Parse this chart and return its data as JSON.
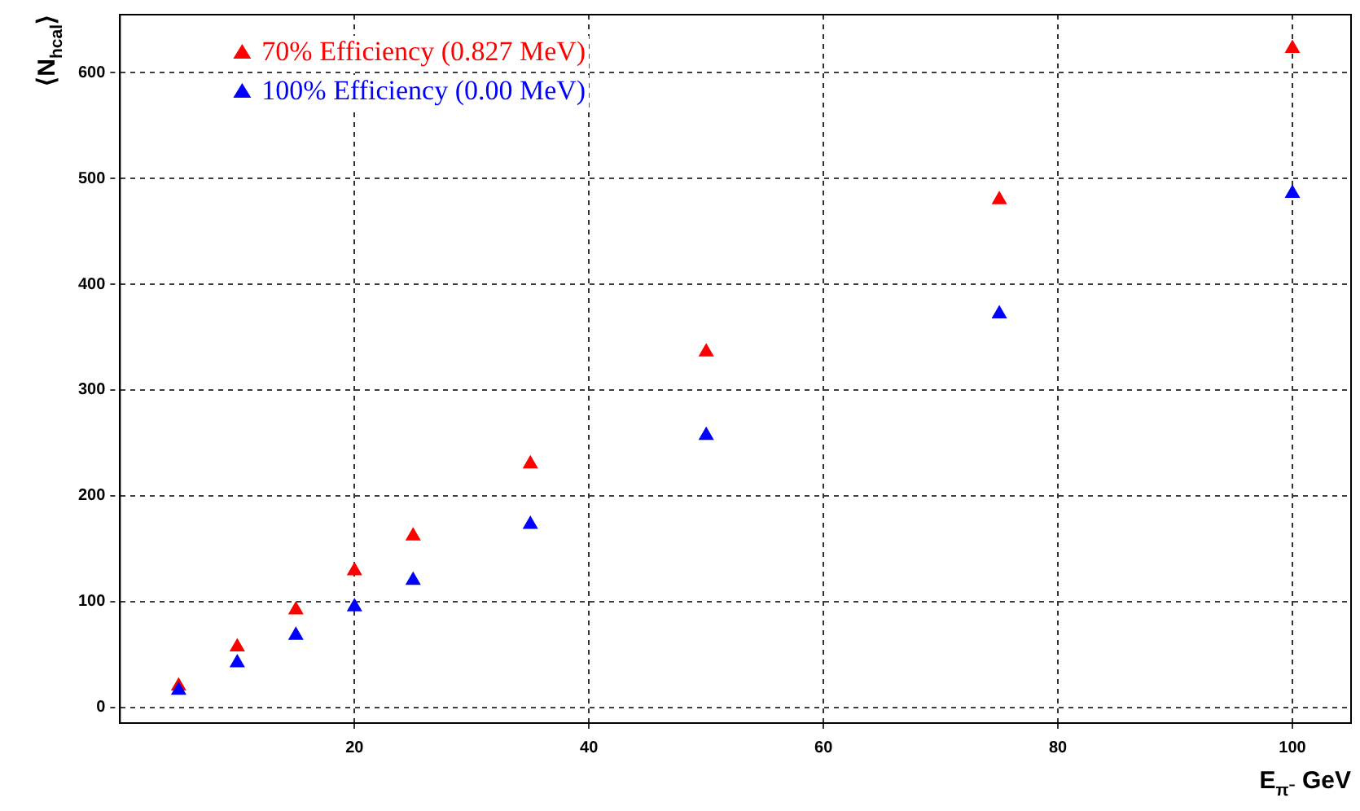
{
  "chart_data": {
    "type": "scatter",
    "xlabel": "E$_{π⁻}$ GeV",
    "ylabel": "⟨N$_{hcal}$⟩",
    "x": [
      5,
      10,
      15,
      20,
      25,
      35,
      50,
      75,
      100
    ],
    "series": [
      {
        "name": "70% Efficiency (0.827 MeV)",
        "color": "#ff0000",
        "values": [
          20,
          57,
          92,
          129,
          162,
          230,
          336,
          480,
          623
        ]
      },
      {
        "name": "100% Efficiency (0.00 MeV)",
        "color": "#0000ff",
        "values": [
          16,
          42,
          68,
          95,
          120,
          173,
          257,
          372,
          486
        ]
      }
    ],
    "xlim": [
      0,
      105
    ],
    "ylim": [
      -15,
      655
    ],
    "xticks": [
      20,
      40,
      60,
      80,
      100
    ],
    "yticks": [
      0,
      100,
      200,
      300,
      400,
      500,
      600
    ],
    "grid": true,
    "legend": "top left",
    "marker": "triangle"
  }
}
